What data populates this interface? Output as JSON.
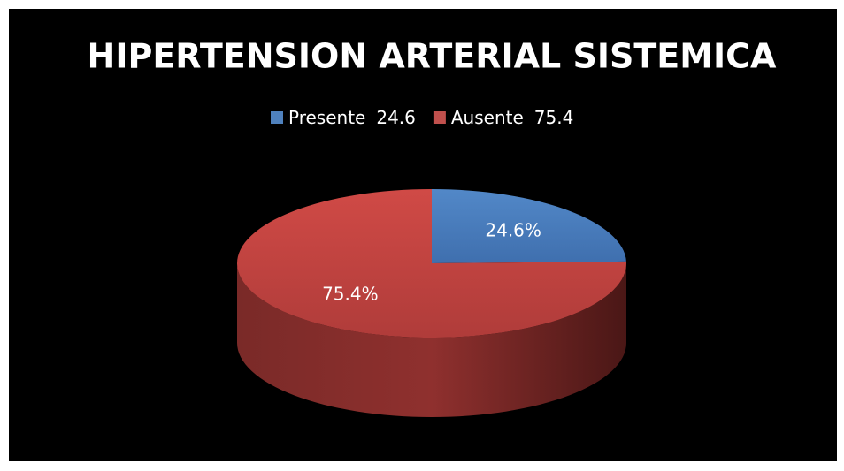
{
  "chart_data": {
    "type": "pie",
    "title": "HIPERTENSION ARTERIAL SISTEMICA",
    "categories": [
      "Presente",
      "Ausente"
    ],
    "values": [
      24.6,
      75.4
    ],
    "value_labels": [
      "24.6%",
      "75.4%"
    ],
    "colors": [
      "#4f81bd",
      "#c0504d"
    ],
    "legend": "top"
  }
}
